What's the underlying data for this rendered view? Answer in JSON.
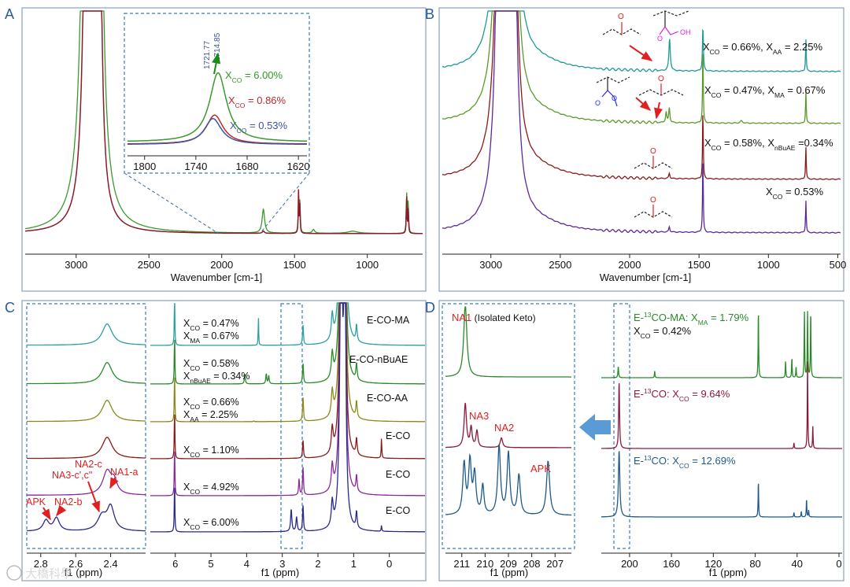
{
  "panels": {
    "a": "A",
    "b": "B",
    "c": "C",
    "d": "D"
  },
  "chart_data": [
    {
      "panel": "A",
      "type": "line",
      "xlabel": "Wavenumber [cm-1]",
      "xlim": [
        3350,
        620
      ],
      "x_ticks": [
        3000,
        2500,
        2000,
        1500,
        1000
      ],
      "series": [
        {
          "name": "XCO = 6.00%",
          "color": "#3a9a2e"
        },
        {
          "name": "XCO = 0.86%",
          "color": "#c0282d"
        },
        {
          "name": "XCO = 0.53%",
          "color": "#3c55a0"
        }
      ],
      "peaks_cm1": [
        2917,
        2849,
        1714.85,
        1472,
        1463,
        730,
        719
      ],
      "inset": {
        "xlim": [
          1820,
          1610
        ],
        "x_ticks": [
          1800,
          1740,
          1680,
          1620
        ],
        "peak_labels": [
          "1721.77",
          "1714.85"
        ],
        "legend": [
          {
            "prefix": "X",
            "sub": "CO",
            "suffix": " = 6.00%",
            "color": "#2f9a26"
          },
          {
            "prefix": "X",
            "sub": "CO",
            "suffix": " = 0.86%",
            "color": "#c0282d"
          },
          {
            "prefix": "X",
            "sub": "CO",
            "suffix": " = 0.53%",
            "color": "#3c55a0"
          }
        ]
      }
    },
    {
      "panel": "B",
      "type": "line",
      "xlabel": "Wavenumber [cm-1]",
      "xlim": [
        3350,
        480
      ],
      "x_ticks": [
        3000,
        2500,
        2000,
        1500,
        1000,
        500
      ],
      "series": [
        {
          "name": "XCO = 0.66%, XAA = 2.25%",
          "color": "#1f9a94"
        },
        {
          "name": "XCO = 0.47%, XMA = 0.67%",
          "color": "#5a9a2a"
        },
        {
          "name": "XCO = 0.58%, XnBuAE = 0.34%",
          "color": "#8b1a1a"
        },
        {
          "name": "XCO = 0.53%",
          "color": "#5a2a9a"
        }
      ],
      "annotations": [
        {
          "parts": [
            {
              "t": "X"
            },
            {
              "s": "CO"
            },
            {
              "t": " = 0.66%,  X"
            },
            {
              "s": "AA"
            },
            {
              "t": " = 2.25%"
            }
          ]
        },
        {
          "parts": [
            {
              "t": "X"
            },
            {
              "s": "CO"
            },
            {
              "t": " = 0.47%, X"
            },
            {
              "s": "MA"
            },
            {
              "t": " = 0.67%"
            }
          ]
        },
        {
          "parts": [
            {
              "t": "X"
            },
            {
              "s": "CO"
            },
            {
              "t": " = 0.58%, X"
            },
            {
              "s": "nBuAE"
            },
            {
              "t": " =0.34%"
            }
          ]
        },
        {
          "parts": [
            {
              "t": "X"
            },
            {
              "s": "CO"
            },
            {
              "t": " = 0.53%"
            }
          ]
        }
      ],
      "structure_labels": [
        "O",
        "O",
        "OH",
        "O",
        "O",
        "O",
        "O",
        "O"
      ]
    },
    {
      "panel": "C",
      "type": "line",
      "xlabel": "f1 (ppm)",
      "xlim": [
        6.7,
        -1.0
      ],
      "x_ticks": [
        6,
        5,
        4,
        3,
        2,
        1,
        0
      ],
      "inset": {
        "xlabel": "f1 (ppm)",
        "xlim": [
          2.88,
          2.2
        ],
        "x_ticks": [
          "2.8",
          "2.6",
          "2.4"
        ]
      },
      "series_names": [
        "E-CO-MA",
        "E-CO-nBuAE",
        "E-CO-AA",
        "E-CO",
        "E-CO",
        "E-CO"
      ],
      "colors": [
        "#2aa0a0",
        "#2a8a2a",
        "#8a8a1a",
        "#8b1a1a",
        "#8a2a9a",
        "#2a2a8a"
      ],
      "annotations": [
        [
          {
            "t": "X"
          },
          {
            "s": "CO"
          },
          {
            "t": " = 0.47%"
          }
        ],
        [
          {
            "t": "X"
          },
          {
            "s": "MA"
          },
          {
            "t": " = 0.67%"
          }
        ],
        [
          {
            "t": "X"
          },
          {
            "s": "CO"
          },
          {
            "t": " = 0.58%"
          }
        ],
        [
          {
            "t": "X"
          },
          {
            "s": "nBuAE"
          },
          {
            "t": " = 0.34%"
          }
        ],
        [
          {
            "t": "X"
          },
          {
            "s": "CO"
          },
          {
            "t": " = 0.66%"
          }
        ],
        [
          {
            "t": "X"
          },
          {
            "s": "AA"
          },
          {
            "t": " = 2.25%"
          }
        ],
        [
          {
            "t": "X"
          },
          {
            "s": "CO"
          },
          {
            "t": " = 1.10%"
          }
        ],
        [
          {
            "t": "X"
          },
          {
            "s": "CO"
          },
          {
            "t": " = 4.92%"
          }
        ],
        [
          {
            "t": "X"
          },
          {
            "s": "CO"
          },
          {
            "t": " = 6.00%"
          }
        ]
      ],
      "peak_labels": [
        {
          "text": "NA2-c",
          "color": "#2a8a2a"
        },
        {
          "text": "NA3-c',c\"",
          "color": "#2a8a2a"
        },
        {
          "text": "NA1-a",
          "color": "#2a8a2a"
        },
        {
          "text": "APK",
          "color": "#e02020"
        },
        {
          "text": "NA2-b",
          "color": "#2a8a2a"
        }
      ]
    },
    {
      "panel": "D",
      "type": "line",
      "xlabel": "f1 (ppm)",
      "xlim": [
        227,
        -3
      ],
      "x_ticks": [
        200,
        160,
        120,
        80,
        40,
        0
      ],
      "inset": {
        "xlabel": "f1 (ppm)",
        "xlim": [
          211.7,
          206.3
        ],
        "x_ticks": [
          211,
          210,
          209,
          208,
          207
        ],
        "peak_labels": [
          "NA1",
          " (Isolated Keto)",
          "NA3",
          "NA2",
          "APK"
        ]
      },
      "series": [
        {
          "parts": [
            {
              "t": "E-"
            },
            {
              "sup": "13"
            },
            {
              "t": "CO-MA: X"
            },
            {
              "s": "MA"
            },
            {
              "t": " = 1.79%"
            }
          ],
          "color": "#2a8a2a"
        },
        {
          "parts": [
            {
              "t": "X"
            },
            {
              "s": "CO"
            },
            {
              "t": " = 0.42%"
            }
          ],
          "color": "#111111"
        },
        {
          "parts": [
            {
              "t": "E-"
            },
            {
              "sup": "13"
            },
            {
              "t": "CO: X"
            },
            {
              "s": "CO"
            },
            {
              "t": " = 9.64%"
            }
          ],
          "color": "#8b1a3a"
        },
        {
          "parts": [
            {
              "t": "E-"
            },
            {
              "sup": "13"
            },
            {
              "t": "CO: X"
            },
            {
              "s": "CO"
            },
            {
              "t": " = 12.69%"
            }
          ],
          "color": "#1f5a8a"
        }
      ]
    }
  ],
  "watermark": "大橋科學"
}
